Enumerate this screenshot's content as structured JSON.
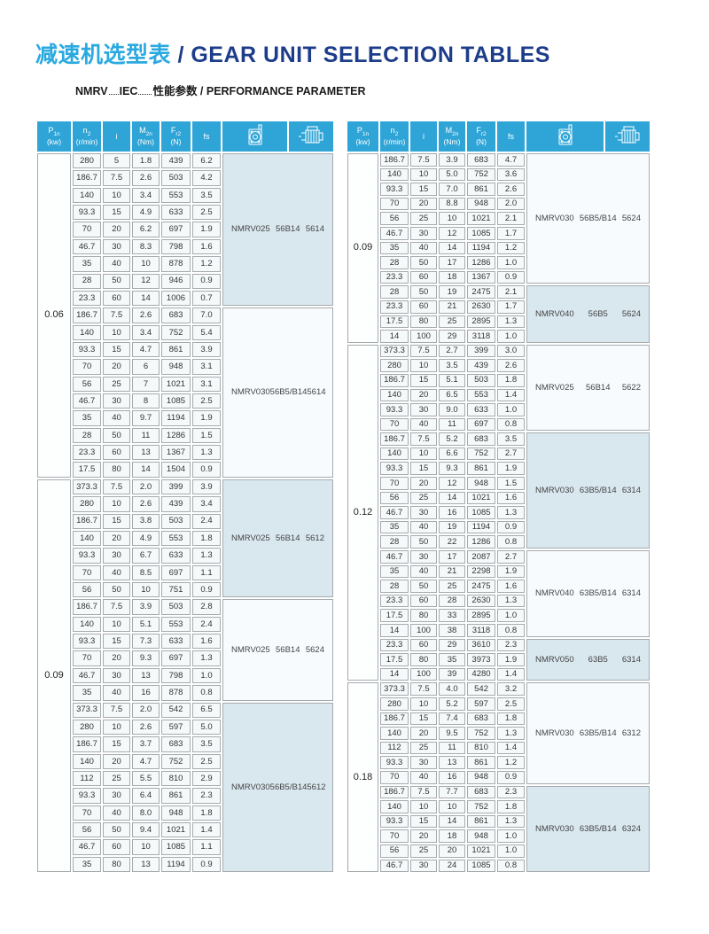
{
  "page": {
    "title_zh": "减速机选型表",
    "title_sep": " / ",
    "title_en": "GEAR UNIT SELECTION TABLES",
    "subtitle_nmrv": "NMRV",
    "subtitle_iec": "IEC",
    "subtitle_rest": "性能参数 / PERFORMANCE PARAMETER"
  },
  "colors": {
    "header-bg": "#2fa5d7",
    "border": "#a6abae",
    "cell-bg": "#f6f9fa",
    "shaded": "#d9e7ef",
    "light": "#f7fbfd",
    "title-zh": "#2aa9e0",
    "title-en": "#1d3d8b"
  },
  "header_columns": [
    {
      "main": "P",
      "sub": "1n",
      "unit": "(kw)"
    },
    {
      "main": "n",
      "sub": "2",
      "unit": "(r/min)"
    },
    {
      "main": "i",
      "sub": "",
      "unit": ""
    },
    {
      "main": "M",
      "sub": "2n",
      "unit": "(Nm)"
    },
    {
      "main": "F",
      "sub": "r2",
      "unit": "(N)"
    },
    {
      "main": "fs",
      "sub": "",
      "unit": ""
    },
    {
      "icon": "worm-gearbox-icon"
    },
    {
      "icon": "motor-icon"
    }
  ],
  "tables": [
    {
      "name": "left",
      "groups": [
        {
          "power": "0.06",
          "blocks": [
            {
              "model": "NMRV025",
              "flange": "56B14",
              "code": "5614",
              "shaded": true,
              "rows": [
                [
                  "280",
                  "5",
                  "1.8",
                  "439",
                  "6.2"
                ],
                [
                  "186.7",
                  "7.5",
                  "2.6",
                  "503",
                  "4.2"
                ],
                [
                  "140",
                  "10",
                  "3.4",
                  "553",
                  "3.5"
                ],
                [
                  "93.3",
                  "15",
                  "4.9",
                  "633",
                  "2.5"
                ],
                [
                  "70",
                  "20",
                  "6.2",
                  "697",
                  "1.9"
                ],
                [
                  "46.7",
                  "30",
                  "8.3",
                  "798",
                  "1.6"
                ],
                [
                  "35",
                  "40",
                  "10",
                  "878",
                  "1.2"
                ],
                [
                  "28",
                  "50",
                  "12",
                  "946",
                  "0.9"
                ],
                [
                  "23.3",
                  "60",
                  "14",
                  "1006",
                  "0.7"
                ]
              ]
            },
            {
              "model": "NMRV030",
              "flange": "56B5/B14",
              "code": "5614",
              "shaded": false,
              "rows": [
                [
                  "186.7",
                  "7.5",
                  "2.6",
                  "683",
                  "7.0"
                ],
                [
                  "140",
                  "10",
                  "3.4",
                  "752",
                  "5.4"
                ],
                [
                  "93.3",
                  "15",
                  "4.7",
                  "861",
                  "3.9"
                ],
                [
                  "70",
                  "20",
                  "6",
                  "948",
                  "3.1"
                ],
                [
                  "56",
                  "25",
                  "7",
                  "1021",
                  "3.1"
                ],
                [
                  "46.7",
                  "30",
                  "8",
                  "1085",
                  "2.5"
                ],
                [
                  "35",
                  "40",
                  "9.7",
                  "1194",
                  "1.9"
                ],
                [
                  "28",
                  "50",
                  "11",
                  "1286",
                  "1.5"
                ],
                [
                  "23.3",
                  "60",
                  "13",
                  "1367",
                  "1.3"
                ],
                [
                  "17.5",
                  "80",
                  "14",
                  "1504",
                  "0.9"
                ]
              ]
            }
          ]
        },
        {
          "power": "0.09",
          "blocks": [
            {
              "model": "NMRV025",
              "flange": "56B14",
              "code": "5612",
              "shaded": true,
              "rows": [
                [
                  "373.3",
                  "7.5",
                  "2.0",
                  "399",
                  "3.9"
                ],
                [
                  "280",
                  "10",
                  "2.6",
                  "439",
                  "3.4"
                ],
                [
                  "186.7",
                  "15",
                  "3.8",
                  "503",
                  "2.4"
                ],
                [
                  "140",
                  "20",
                  "4.9",
                  "553",
                  "1.8"
                ],
                [
                  "93.3",
                  "30",
                  "6.7",
                  "633",
                  "1.3"
                ],
                [
                  "70",
                  "40",
                  "8.5",
                  "697",
                  "1.1"
                ],
                [
                  "56",
                  "50",
                  "10",
                  "751",
                  "0.9"
                ]
              ]
            },
            {
              "model": "NMRV025",
              "flange": "56B14",
              "code": "5624",
              "shaded": false,
              "rows": [
                [
                  "186.7",
                  "7.5",
                  "3.9",
                  "503",
                  "2.8"
                ],
                [
                  "140",
                  "10",
                  "5.1",
                  "553",
                  "2.4"
                ],
                [
                  "93.3",
                  "15",
                  "7.3",
                  "633",
                  "1.6"
                ],
                [
                  "70",
                  "20",
                  "9.3",
                  "697",
                  "1.3"
                ],
                [
                  "46.7",
                  "30",
                  "13",
                  "798",
                  "1.0"
                ],
                [
                  "35",
                  "40",
                  "16",
                  "878",
                  "0.8"
                ]
              ]
            },
            {
              "model": "NMRV030",
              "flange": "56B5/B14",
              "code": "5612",
              "shaded": true,
              "rows": [
                [
                  "373.3",
                  "7.5",
                  "2.0",
                  "542",
                  "6.5"
                ],
                [
                  "280",
                  "10",
                  "2.6",
                  "597",
                  "5.0"
                ],
                [
                  "186.7",
                  "15",
                  "3.7",
                  "683",
                  "3.5"
                ],
                [
                  "140",
                  "20",
                  "4.7",
                  "752",
                  "2.5"
                ],
                [
                  "112",
                  "25",
                  "5.5",
                  "810",
                  "2.9"
                ],
                [
                  "93.3",
                  "30",
                  "6.4",
                  "861",
                  "2.3"
                ],
                [
                  "70",
                  "40",
                  "8.0",
                  "948",
                  "1.8"
                ],
                [
                  "56",
                  "50",
                  "9.4",
                  "1021",
                  "1.4"
                ],
                [
                  "46.7",
                  "60",
                  "10",
                  "1085",
                  "1.1"
                ],
                [
                  "35",
                  "80",
                  "13",
                  "1194",
                  "0.9"
                ]
              ]
            }
          ]
        }
      ]
    },
    {
      "name": "right",
      "groups": [
        {
          "power": "0.09",
          "blocks": [
            {
              "model": "NMRV030",
              "flange": "56B5/B14",
              "code": "5624",
              "shaded": false,
              "rows": [
                [
                  "186.7",
                  "7.5",
                  "3.9",
                  "683",
                  "4.7"
                ],
                [
                  "140",
                  "10",
                  "5.0",
                  "752",
                  "3.6"
                ],
                [
                  "93.3",
                  "15",
                  "7.0",
                  "861",
                  "2.6"
                ],
                [
                  "70",
                  "20",
                  "8.8",
                  "948",
                  "2.0"
                ],
                [
                  "56",
                  "25",
                  "10",
                  "1021",
                  "2.1"
                ],
                [
                  "46.7",
                  "30",
                  "12",
                  "1085",
                  "1.7"
                ],
                [
                  "35",
                  "40",
                  "14",
                  "1194",
                  "1.2"
                ],
                [
                  "28",
                  "50",
                  "17",
                  "1286",
                  "1.0"
                ],
                [
                  "23.3",
                  "60",
                  "18",
                  "1367",
                  "0.9"
                ]
              ]
            },
            {
              "model": "NMRV040",
              "flange": "56B5",
              "code": "5624",
              "shaded": true,
              "rows": [
                [
                  "28",
                  "50",
                  "19",
                  "2475",
                  "2.1"
                ],
                [
                  "23.3",
                  "60",
                  "21",
                  "2630",
                  "1.7"
                ],
                [
                  "17.5",
                  "80",
                  "25",
                  "2895",
                  "1.3"
                ],
                [
                  "14",
                  "100",
                  "29",
                  "3118",
                  "1.0"
                ]
              ]
            }
          ]
        },
        {
          "power": "0.12",
          "blocks": [
            {
              "model": "NMRV025",
              "flange": "56B14",
              "code": "5622",
              "shaded": false,
              "rows": [
                [
                  "373.3",
                  "7.5",
                  "2.7",
                  "399",
                  "3.0"
                ],
                [
                  "280",
                  "10",
                  "3.5",
                  "439",
                  "2.6"
                ],
                [
                  "186.7",
                  "15",
                  "5.1",
                  "503",
                  "1.8"
                ],
                [
                  "140",
                  "20",
                  "6.5",
                  "553",
                  "1.4"
                ],
                [
                  "93.3",
                  "30",
                  "9.0",
                  "633",
                  "1.0"
                ],
                [
                  "70",
                  "40",
                  "11",
                  "697",
                  "0.8"
                ]
              ]
            },
            {
              "model": "NMRV030",
              "flange": "63B5/B14",
              "code": "6314",
              "shaded": true,
              "rows": [
                [
                  "186.7",
                  "7.5",
                  "5.2",
                  "683",
                  "3.5"
                ],
                [
                  "140",
                  "10",
                  "6.6",
                  "752",
                  "2.7"
                ],
                [
                  "93.3",
                  "15",
                  "9.3",
                  "861",
                  "1.9"
                ],
                [
                  "70",
                  "20",
                  "12",
                  "948",
                  "1.5"
                ],
                [
                  "56",
                  "25",
                  "14",
                  "1021",
                  "1.6"
                ],
                [
                  "46.7",
                  "30",
                  "16",
                  "1085",
                  "1.3"
                ],
                [
                  "35",
                  "40",
                  "19",
                  "1194",
                  "0.9"
                ],
                [
                  "28",
                  "50",
                  "22",
                  "1286",
                  "0.8"
                ]
              ]
            },
            {
              "model": "NMRV040",
              "flange": "63B5/B14",
              "code": "6314",
              "shaded": false,
              "rows": [
                [
                  "46.7",
                  "30",
                  "17",
                  "2087",
                  "2.7"
                ],
                [
                  "35",
                  "40",
                  "21",
                  "2298",
                  "1.9"
                ],
                [
                  "28",
                  "50",
                  "25",
                  "2475",
                  "1.6"
                ],
                [
                  "23.3",
                  "60",
                  "28",
                  "2630",
                  "1.3"
                ],
                [
                  "17.5",
                  "80",
                  "33",
                  "2895",
                  "1.0"
                ],
                [
                  "14",
                  "100",
                  "38",
                  "3118",
                  "0.8"
                ]
              ]
            },
            {
              "model": "NMRV050",
              "flange": "63B5",
              "code": "6314",
              "shaded": true,
              "rows": [
                [
                  "23.3",
                  "60",
                  "29",
                  "3610",
                  "2.3"
                ],
                [
                  "17.5",
                  "80",
                  "35",
                  "3973",
                  "1.9"
                ],
                [
                  "14",
                  "100",
                  "39",
                  "4280",
                  "1.4"
                ]
              ]
            }
          ]
        },
        {
          "power": "0.18",
          "blocks": [
            {
              "model": "NMRV030",
              "flange": "63B5/B14",
              "code": "6312",
              "shaded": false,
              "rows": [
                [
                  "373.3",
                  "7.5",
                  "4.0",
                  "542",
                  "3.2"
                ],
                [
                  "280",
                  "10",
                  "5.2",
                  "597",
                  "2.5"
                ],
                [
                  "186.7",
                  "15",
                  "7.4",
                  "683",
                  "1.8"
                ],
                [
                  "140",
                  "20",
                  "9.5",
                  "752",
                  "1.3"
                ],
                [
                  "112",
                  "25",
                  "11",
                  "810",
                  "1.4"
                ],
                [
                  "93.3",
                  "30",
                  "13",
                  "861",
                  "1.2"
                ],
                [
                  "70",
                  "40",
                  "16",
                  "948",
                  "0.9"
                ]
              ]
            },
            {
              "model": "NMRV030",
              "flange": "63B5/B14",
              "code": "6324",
              "shaded": true,
              "rows": [
                [
                  "186.7",
                  "7.5",
                  "7.7",
                  "683",
                  "2.3"
                ],
                [
                  "140",
                  "10",
                  "10",
                  "752",
                  "1.8"
                ],
                [
                  "93.3",
                  "15",
                  "14",
                  "861",
                  "1.3"
                ],
                [
                  "70",
                  "20",
                  "18",
                  "948",
                  "1.0"
                ],
                [
                  "56",
                  "25",
                  "20",
                  "1021",
                  "1.0"
                ],
                [
                  "46.7",
                  "30",
                  "24",
                  "1085",
                  "0.8"
                ]
              ]
            }
          ]
        }
      ]
    }
  ]
}
